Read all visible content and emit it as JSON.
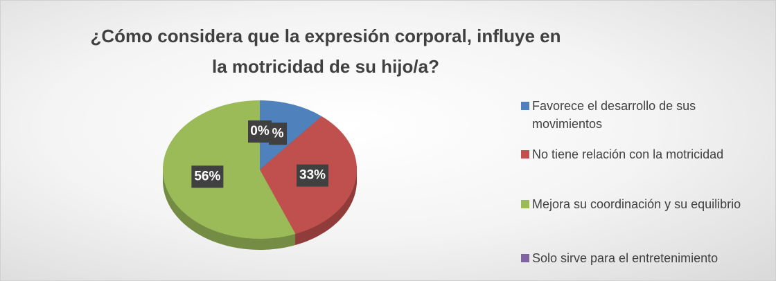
{
  "chart_data": {
    "type": "pie",
    "title": "¿Cómo considera que la expresión corporal, influye en la motricidad de su hijo/a?",
    "series": [
      {
        "name": "Favorece el desarrollo de sus movimientos",
        "color": "#4f81bd",
        "values": [
          11
        ]
      },
      {
        "name": "No tiene relación con la motricidad",
        "color": "#c0504d",
        "values": [
          33
        ]
      },
      {
        "name": "Mejora su coordinación y su equilibrio",
        "color": "#9bbb59",
        "values": [
          56
        ]
      },
      {
        "name": "Solo sirve para el entretenimiento",
        "color": "#8064a2",
        "values": [
          0
        ]
      }
    ],
    "value_labels": [
      "%",
      "33%",
      "56%",
      "0%"
    ],
    "legend": "right"
  }
}
